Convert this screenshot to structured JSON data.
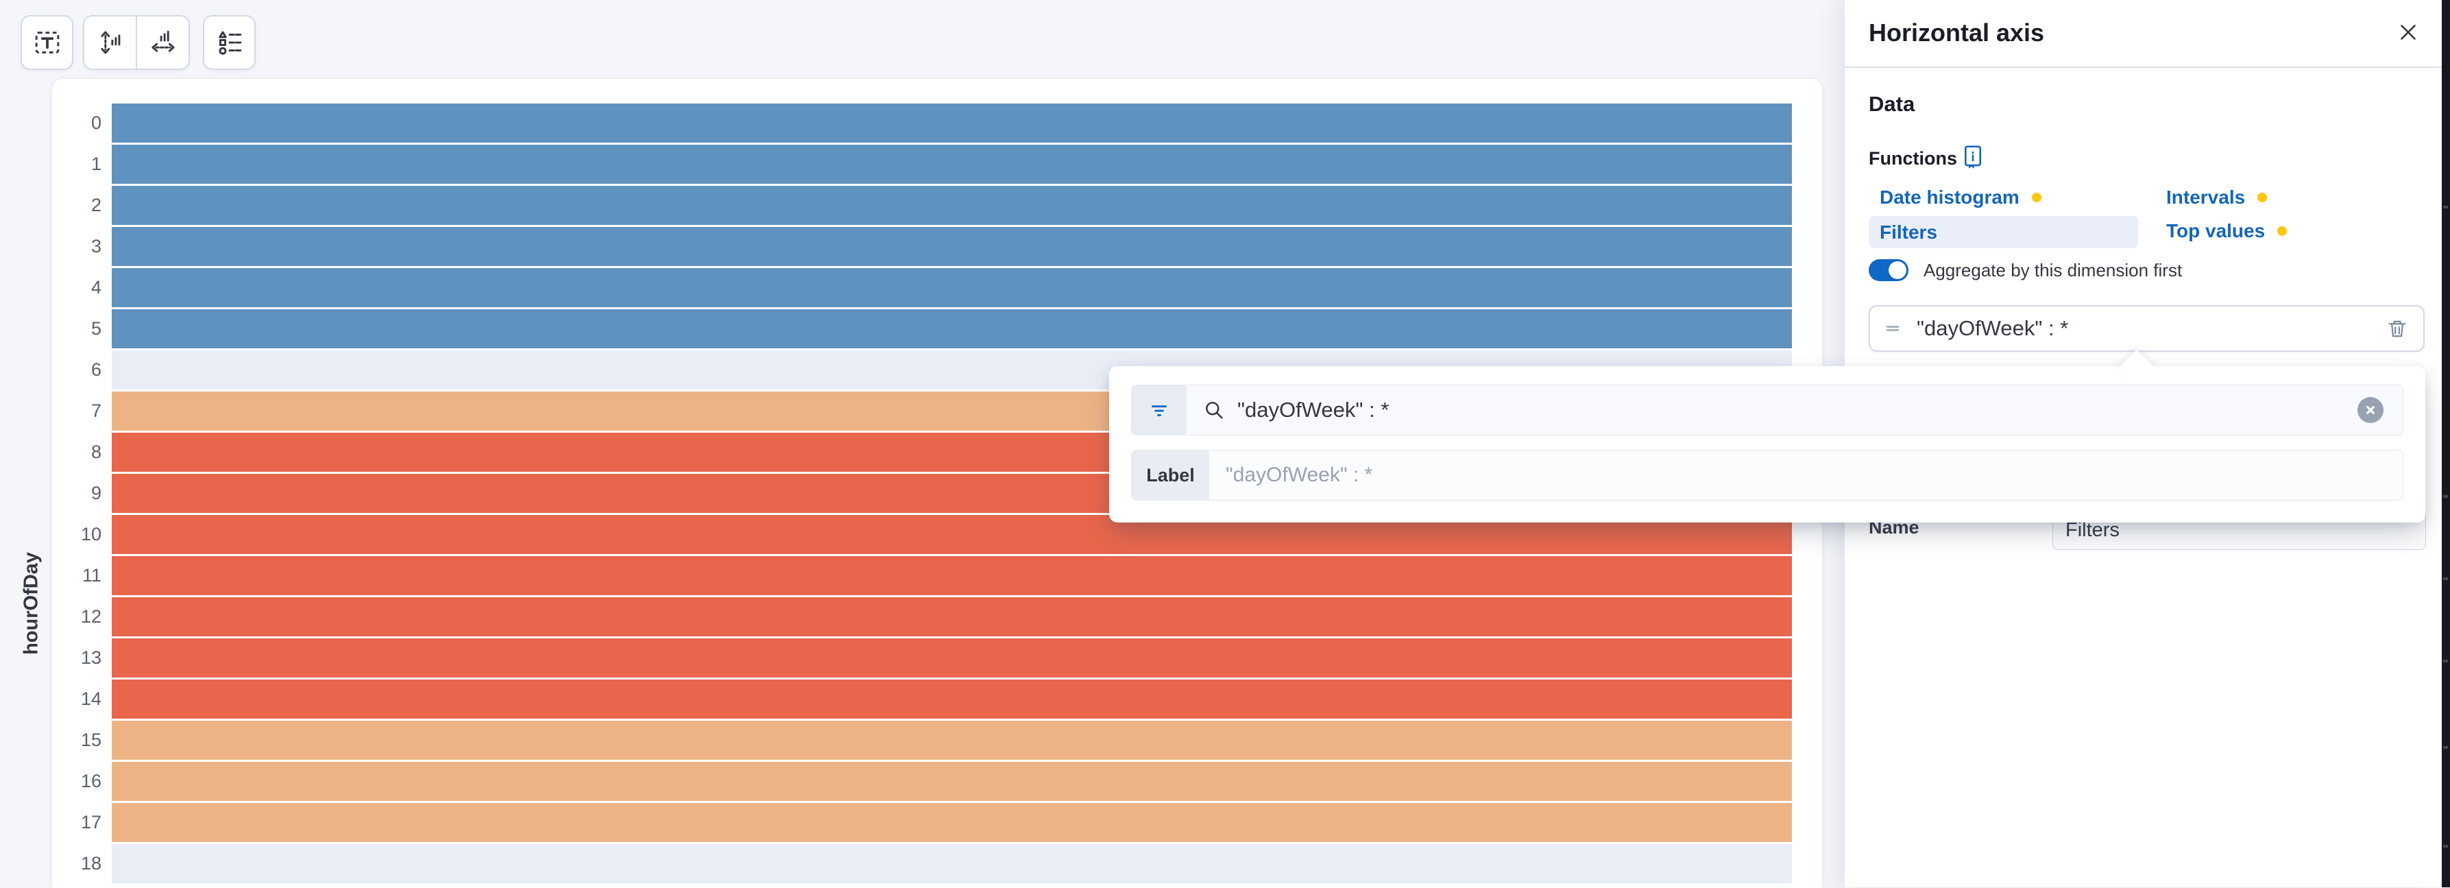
{
  "toolbar": {
    "buttons": [
      {
        "icon": "axis-labels-icon"
      },
      {
        "icon": "vertical-axis-icon"
      },
      {
        "icon": "horizontal-axis-icon"
      },
      {
        "icon": "legend-icon"
      }
    ]
  },
  "chart": {
    "type": "heatmap",
    "ylabel": "hourOfDay",
    "legend_levels": {
      "low": "blue",
      "mid": "light-orange",
      "high": "red",
      "empty": "no-data"
    },
    "visible_rows": [
      {
        "label": "0",
        "level": "low"
      },
      {
        "label": "1",
        "level": "low"
      },
      {
        "label": "2",
        "level": "low"
      },
      {
        "label": "3",
        "level": "low"
      },
      {
        "label": "4",
        "level": "low"
      },
      {
        "label": "5",
        "level": "low"
      },
      {
        "label": "6",
        "level": "empty"
      },
      {
        "label": "7",
        "level": "mid"
      },
      {
        "label": "8",
        "level": "high"
      },
      {
        "label": "9",
        "level": "high"
      },
      {
        "label": "10",
        "level": "high"
      },
      {
        "label": "11",
        "level": "high"
      },
      {
        "label": "12",
        "level": "high"
      },
      {
        "label": "13",
        "level": "high"
      },
      {
        "label": "14",
        "level": "high"
      },
      {
        "label": "15",
        "level": "mid"
      },
      {
        "label": "16",
        "level": "mid"
      },
      {
        "label": "17",
        "level": "mid"
      },
      {
        "label": "18",
        "level": "empty"
      }
    ]
  },
  "flyout": {
    "title": "Horizontal axis",
    "close_icon": "close-icon",
    "data_heading": "Data",
    "functions_label": "Functions",
    "functions_help_icon": "documentation-icon",
    "functions": [
      {
        "label": "Date histogram",
        "badge_dot": true,
        "selected": false
      },
      {
        "label": "Intervals",
        "badge_dot": true,
        "selected": false
      },
      {
        "label": "Filters",
        "badge_dot": false,
        "selected": true
      },
      {
        "label": "Top values",
        "badge_dot": true,
        "selected": false
      }
    ],
    "aggregate_toggle": {
      "label": "Aggregate by this dimension first",
      "checked": true
    },
    "filter_item": {
      "query": "\"dayOfWeek\" : *",
      "drag_icon": "drag-handle-icon",
      "delete_icon": "trash-icon"
    },
    "name_row": {
      "label": "Name",
      "value": "Filters"
    }
  },
  "popover": {
    "filter_icon": "filter-icon",
    "search_icon": "search-icon",
    "search_value": "\"dayOfWeek\" : *",
    "clear_icon": "clear-icon",
    "label_row": {
      "label": "Label",
      "placeholder": "\"dayOfWeek\" : *"
    }
  },
  "colors": {
    "link_blue": "#1565b8",
    "toggle_blue": "#0d68c6",
    "warning_dot": "#fec514",
    "selected_function_bg": "#e9eef9",
    "heat_blue": "#6092c0",
    "heat_red": "#e7664c",
    "heat_orange": "#ecb486",
    "heat_empty": "#e9edf6"
  }
}
